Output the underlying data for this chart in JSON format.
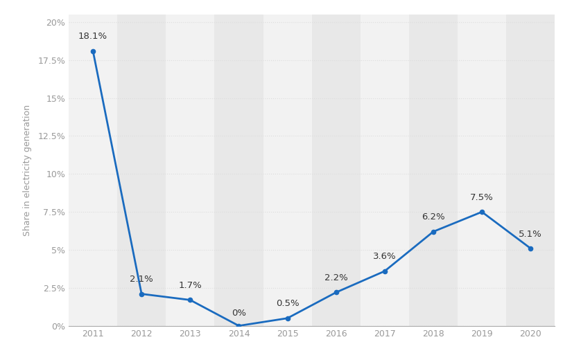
{
  "years": [
    2011,
    2012,
    2013,
    2014,
    2015,
    2016,
    2017,
    2018,
    2019,
    2020
  ],
  "values": [
    18.1,
    2.1,
    1.7,
    0.0,
    0.5,
    2.2,
    3.6,
    6.2,
    7.5,
    5.1
  ],
  "labels": [
    "18.1%",
    "2.1%",
    "1.7%",
    "0%",
    "0.5%",
    "2.2%",
    "3.6%",
    "6.2%",
    "7.5%",
    "5.1%"
  ],
  "line_color": "#1a6bbf",
  "marker_color": "#1a6bbf",
  "bg_color": "#ffffff",
  "plot_bg_color": "#ffffff",
  "band_color_dark": "#e8e8e8",
  "band_color_light": "#f2f2f2",
  "grid_color": "#dddddd",
  "ylabel": "Share in electricity generation",
  "ylim": [
    0,
    20.5
  ],
  "yticks": [
    0,
    2.5,
    5.0,
    7.5,
    10.0,
    12.5,
    15.0,
    17.5,
    20.0
  ],
  "ytick_labels": [
    "0%",
    "2.5%",
    "5%",
    "7.5%",
    "10%",
    "12.5%",
    "15%",
    "17.5%",
    "20%"
  ],
  "label_fontsize": 9.5,
  "axis_fontsize": 9,
  "ylabel_fontsize": 9,
  "label_color": "#333333",
  "tick_color": "#999999"
}
